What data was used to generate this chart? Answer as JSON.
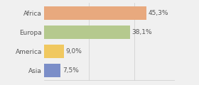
{
  "categories": [
    "Africa",
    "Europa",
    "America",
    "Asia"
  ],
  "values": [
    45.3,
    38.1,
    9.0,
    7.5
  ],
  "labels": [
    "45,3%",
    "38,1%",
    "9,0%",
    "7,5%"
  ],
  "bar_colors": [
    "#e8a97e",
    "#b5c98e",
    "#f0c860",
    "#7b8ec8"
  ],
  "background_color": "#f0f0f0",
  "xlim": [
    0,
    58
  ],
  "label_fontsize": 6.5,
  "tick_fontsize": 6.5,
  "grid_lines": [
    20,
    40
  ],
  "grid_color": "#cccccc"
}
